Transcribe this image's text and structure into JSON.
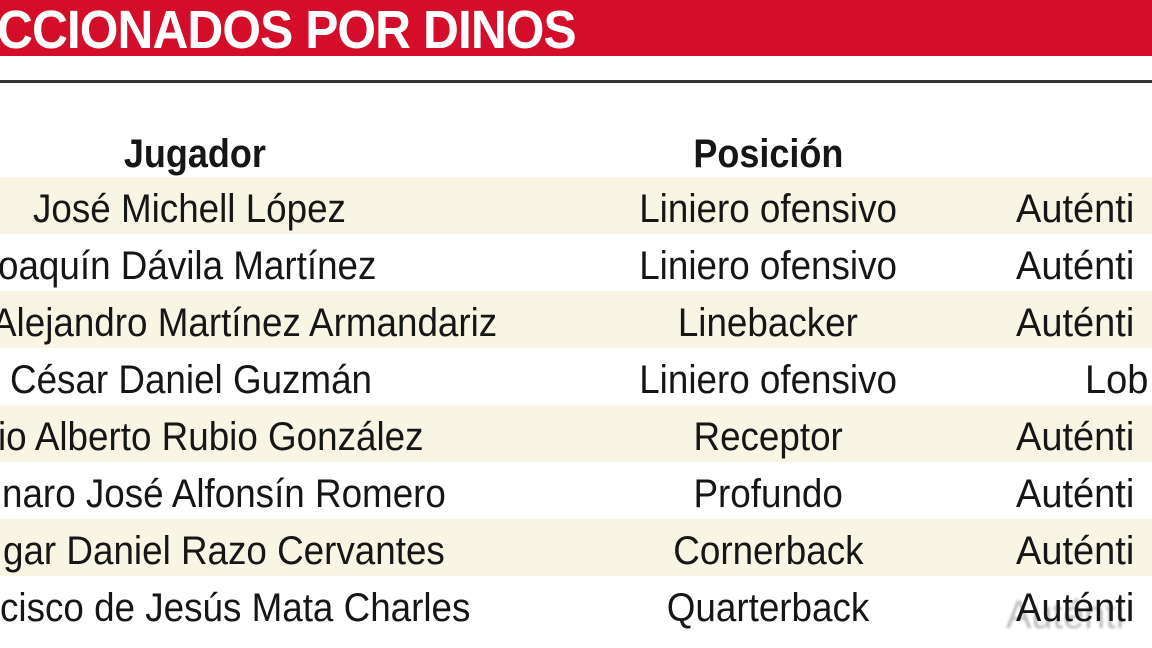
{
  "banner": {
    "title": "CCIONADOS POR DINOS"
  },
  "colors": {
    "banner_bg": "#D30D2A",
    "banner_text": "#FFFFFF",
    "row_stripe": "#F8F5E4",
    "separator": "#343434",
    "text": "#161616",
    "watermark_ghost": "#8A8A8A"
  },
  "chart_data": {
    "type": "table",
    "title": "CCIONADOS POR DINOS",
    "columns": [
      "Jugador",
      "Posición",
      ""
    ],
    "rows": [
      {
        "player": "José Michell López",
        "position": "Liniero ofensivo",
        "team": "Auténti"
      },
      {
        "player": "oaquín Dávila Martínez",
        "position": "Liniero ofensivo",
        "team": "Auténti"
      },
      {
        "player": "Alejandro Martínez Armandariz",
        "position": "Linebacker",
        "team": "Auténti"
      },
      {
        "player": "César Daniel Guzmán",
        "position": "Liniero ofensivo",
        "team": "Lob"
      },
      {
        "player": "io Alberto Rubio González",
        "position": "Receptor",
        "team": "Auténti"
      },
      {
        "player": "naro José Alfonsín Romero",
        "position": "Profundo",
        "team": "Auténti"
      },
      {
        "player": "gar Daniel Razo Cervantes",
        "position": "Cornerback",
        "team": "Auténti"
      },
      {
        "player": "cisco de Jesús Mata Charles",
        "position": "Quarterback",
        "team": "Auténti"
      }
    ]
  }
}
